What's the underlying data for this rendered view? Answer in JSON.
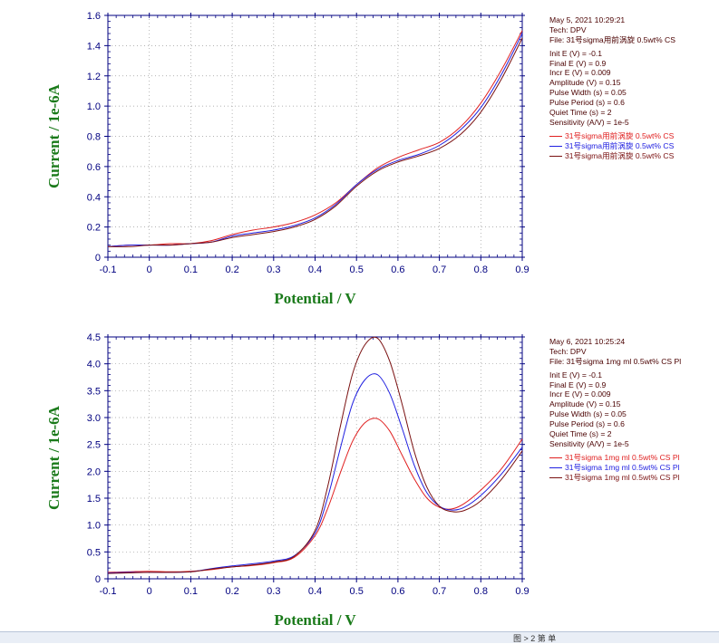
{
  "panels": [
    {
      "info": {
        "date": "May 5, 2021   10:29:21",
        "tech": "Tech: DPV",
        "file": "File: 31号sigma用前涡旋 0.5wt% CS",
        "params": [
          "Init E (V) = -0.1",
          "Final E (V) = 0.9",
          "Incr E (V) = 0.009",
          "Amplitude (V) = 0.15",
          "Pulse Width (s) = 0.05",
          "Pulse Period (s) = 0.6",
          "Quiet Time (s) = 2",
          "Sensitivity (A/V) = 1e-5"
        ],
        "legend": [
          {
            "label": "31号sigma用前涡旋 0.5wt% CS",
            "color": "#e02020"
          },
          {
            "label": "31号sigma用前涡旋 0.5wt% CS",
            "color": "#2020e0"
          },
          {
            "label": "31号sigma用前涡旋 0.5wt% CS",
            "color": "#7a1010"
          }
        ]
      }
    },
    {
      "info": {
        "date": "May 6, 2021   10:25:24",
        "tech": "Tech: DPV",
        "file": "File: 31号sigma 1mg ml 0.5wt% CS Pl",
        "params": [
          "Init E (V) = -0.1",
          "Final E (V) = 0.9",
          "Incr E (V) = 0.009",
          "Amplitude (V) = 0.15",
          "Pulse Width (s) = 0.05",
          "Pulse Period (s) = 0.6",
          "Quiet Time (s) = 2",
          "Sensitivity (A/V) = 1e-5"
        ],
        "legend": [
          {
            "label": "31号sigma 1mg ml 0.5wt% CS Pl",
            "color": "#e02020"
          },
          {
            "label": "31号sigma 1mg ml 0.5wt% CS Pl",
            "color": "#2020e0"
          },
          {
            "label": "31号sigma 1mg ml 0.5wt% CS Pl",
            "color": "#7a1010"
          }
        ]
      }
    }
  ],
  "status_text": "图  > 2  第  单",
  "chart_data": [
    {
      "type": "line",
      "xlabel": "Potential / V",
      "ylabel": "Current / 1e-6A",
      "xlim": [
        -0.1,
        0.9
      ],
      "ylim": [
        0,
        1.6
      ],
      "xticks": [
        -0.1,
        0,
        0.1,
        0.2,
        0.3,
        0.4,
        0.5,
        0.6,
        0.7,
        0.8,
        0.9
      ],
      "yticks": [
        0,
        0.2,
        0.4,
        0.6,
        0.8,
        1.0,
        1.2,
        1.4,
        1.6
      ],
      "xtick_labels": [
        "-0.1",
        "0",
        "0.1",
        "0.2",
        "0.3",
        "0.4",
        "0.5",
        "0.6",
        "0.7",
        "0.8",
        "0.9"
      ],
      "ytick_labels": [
        "0",
        "0.2",
        "0.4",
        "0.6",
        "0.8",
        "1.0",
        "1.2",
        "1.4",
        "1.6"
      ],
      "grid": true,
      "x": [
        -0.1,
        -0.05,
        0.0,
        0.05,
        0.1,
        0.15,
        0.2,
        0.25,
        0.3,
        0.35,
        0.4,
        0.45,
        0.5,
        0.55,
        0.6,
        0.65,
        0.7,
        0.75,
        0.8,
        0.85,
        0.9
      ],
      "series": [
        {
          "color": "#e02020",
          "values": [
            0.07,
            0.08,
            0.08,
            0.09,
            0.09,
            0.11,
            0.15,
            0.18,
            0.2,
            0.23,
            0.28,
            0.36,
            0.48,
            0.59,
            0.66,
            0.71,
            0.76,
            0.86,
            1.02,
            1.24,
            1.5
          ]
        },
        {
          "color": "#2020e0",
          "values": [
            0.07,
            0.08,
            0.08,
            0.08,
            0.09,
            0.1,
            0.14,
            0.16,
            0.18,
            0.21,
            0.26,
            0.35,
            0.48,
            0.58,
            0.64,
            0.68,
            0.74,
            0.84,
            0.99,
            1.21,
            1.48
          ]
        },
        {
          "color": "#7a1010",
          "values": [
            0.07,
            0.07,
            0.08,
            0.08,
            0.09,
            0.1,
            0.13,
            0.15,
            0.17,
            0.2,
            0.25,
            0.34,
            0.47,
            0.57,
            0.63,
            0.67,
            0.72,
            0.81,
            0.96,
            1.18,
            1.45
          ]
        }
      ]
    },
    {
      "type": "line",
      "xlabel": "Potential / V",
      "ylabel": "Current / 1e-6A",
      "xlim": [
        -0.1,
        0.9
      ],
      "ylim": [
        0,
        4.5
      ],
      "xticks": [
        -0.1,
        0,
        0.1,
        0.2,
        0.3,
        0.4,
        0.5,
        0.6,
        0.7,
        0.8,
        0.9
      ],
      "yticks": [
        0,
        0.5,
        1.0,
        1.5,
        2.0,
        2.5,
        3.0,
        3.5,
        4.0,
        4.5
      ],
      "xtick_labels": [
        "-0.1",
        "0",
        "0.1",
        "0.2",
        "0.3",
        "0.4",
        "0.5",
        "0.6",
        "0.7",
        "0.8",
        "0.9"
      ],
      "ytick_labels": [
        "0",
        "0.5",
        "1.0",
        "1.5",
        "2.0",
        "2.5",
        "3.0",
        "3.5",
        "4.0",
        "4.5"
      ],
      "grid": true,
      "x": [
        -0.1,
        -0.05,
        0.0,
        0.05,
        0.1,
        0.15,
        0.2,
        0.25,
        0.3,
        0.35,
        0.4,
        0.43,
        0.46,
        0.49,
        0.52,
        0.55,
        0.58,
        0.61,
        0.64,
        0.67,
        0.7,
        0.73,
        0.76,
        0.8,
        0.85,
        0.9
      ],
      "series": [
        {
          "color": "#e02020",
          "values": [
            0.12,
            0.13,
            0.14,
            0.13,
            0.14,
            0.17,
            0.22,
            0.25,
            0.3,
            0.4,
            0.8,
            1.3,
            1.95,
            2.55,
            2.9,
            2.98,
            2.75,
            2.3,
            1.85,
            1.5,
            1.33,
            1.3,
            1.4,
            1.65,
            2.05,
            2.6
          ]
        },
        {
          "color": "#2020e0",
          "values": [
            0.11,
            0.12,
            0.12,
            0.12,
            0.13,
            0.19,
            0.24,
            0.28,
            0.33,
            0.43,
            0.85,
            1.5,
            2.4,
            3.25,
            3.7,
            3.8,
            3.45,
            2.8,
            2.1,
            1.6,
            1.35,
            1.28,
            1.33,
            1.55,
            1.95,
            2.45
          ]
        },
        {
          "color": "#7a1010",
          "values": [
            0.1,
            0.11,
            0.12,
            0.12,
            0.13,
            0.18,
            0.22,
            0.26,
            0.31,
            0.42,
            0.9,
            1.7,
            2.8,
            3.8,
            4.35,
            4.48,
            4.05,
            3.25,
            2.35,
            1.7,
            1.35,
            1.25,
            1.27,
            1.45,
            1.85,
            2.38
          ]
        }
      ]
    }
  ]
}
